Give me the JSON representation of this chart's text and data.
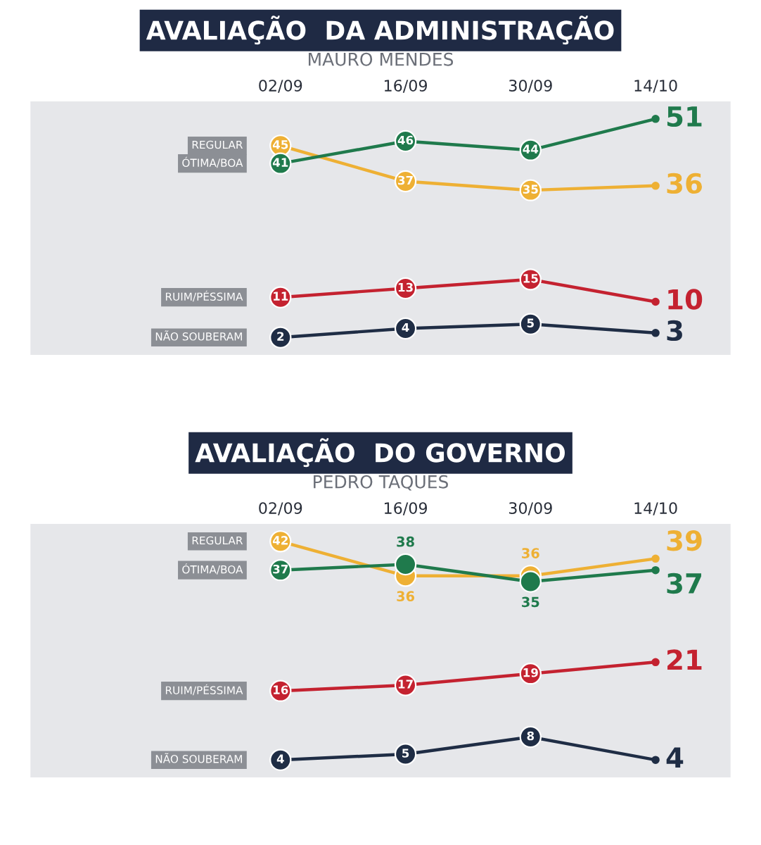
{
  "chart_data": [
    {
      "type": "line",
      "title": "AVALIAÇÃO  DA ADMINISTRAÇÃO",
      "subtitle": "MAURO MENDES",
      "categories": [
        "02/09",
        "16/09",
        "30/09",
        "14/10"
      ],
      "data_labels": true,
      "marker": "circle",
      "tick_labels": "x",
      "series": [
        {
          "name": "REGULAR",
          "color": "#eeb034",
          "values": [
            45,
            37,
            35,
            36
          ]
        },
        {
          "name": "ÓTIMA/BOA",
          "color": "#1f7a4c",
          "values": [
            41,
            46,
            44,
            51
          ]
        },
        {
          "name": "RUIM/PÉSSIMA",
          "color": "#c42230",
          "values": [
            11,
            13,
            15,
            10
          ]
        },
        {
          "name": "NÃO SOUBERAM",
          "color": "#1f2d45",
          "values": [
            2,
            4,
            5,
            3
          ]
        }
      ]
    },
    {
      "type": "line",
      "title": "AVALIAÇÃO  DO GOVERNO",
      "subtitle": "PEDRO TAQUES",
      "categories": [
        "02/09",
        "16/09",
        "30/09",
        "14/10"
      ],
      "data_labels": true,
      "marker": "circle",
      "tick_labels": "x",
      "series": [
        {
          "name": "REGULAR",
          "color": "#eeb034",
          "values": [
            42,
            36,
            36,
            39
          ]
        },
        {
          "name": "ÓTIMA/BOA",
          "color": "#1f7a4c",
          "values": [
            37,
            38,
            35,
            37
          ]
        },
        {
          "name": "RUIM/PÉSSIMA",
          "color": "#c42230",
          "values": [
            16,
            17,
            19,
            21
          ]
        },
        {
          "name": "NÃO SOUBERAM",
          "color": "#1f2d45",
          "values": [
            4,
            5,
            8,
            4
          ]
        }
      ]
    }
  ]
}
